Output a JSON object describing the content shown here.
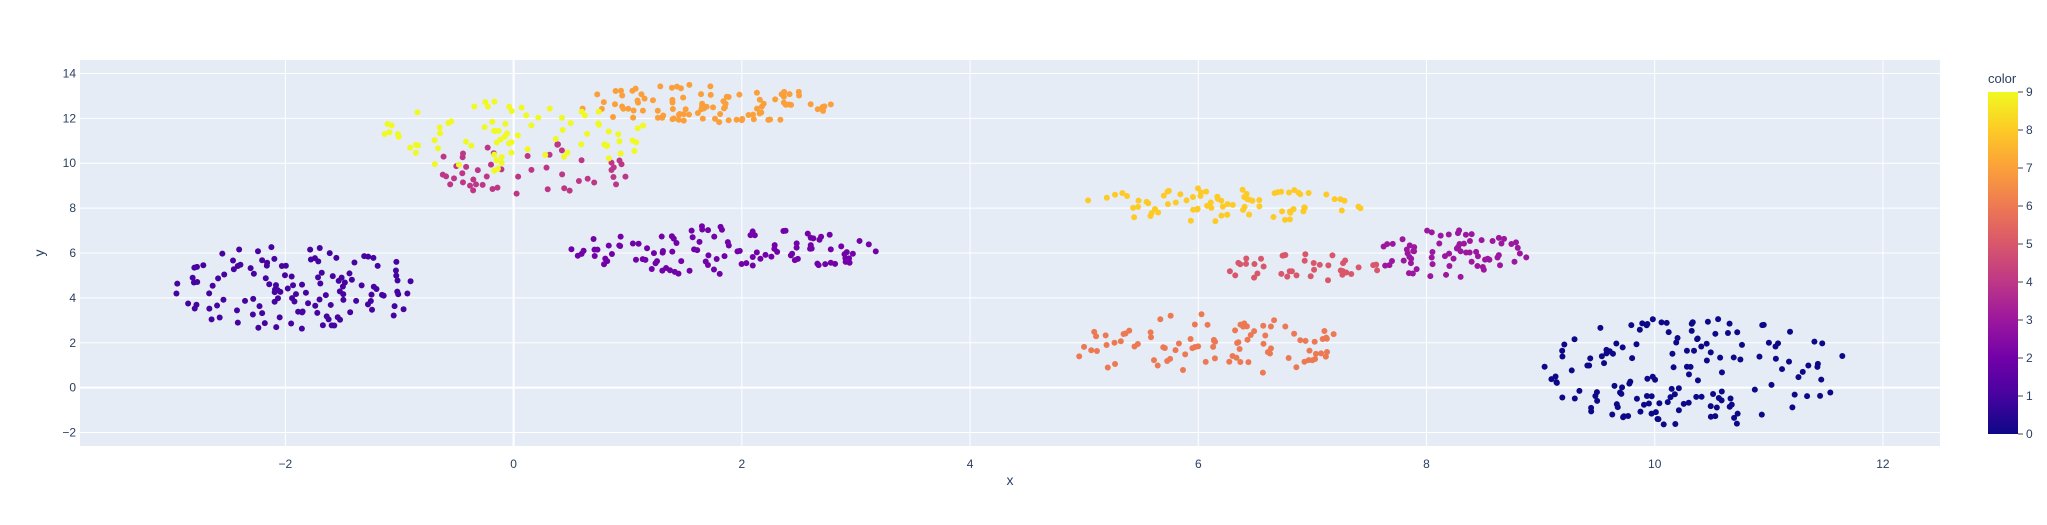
{
  "chart_data": {
    "type": "scatter",
    "title": "",
    "xlabel": "x",
    "ylabel": "y",
    "xlim": [
      -3.8,
      12.5
    ],
    "ylim": [
      -2.6,
      14.6
    ],
    "x_ticks": [
      -2,
      0,
      2,
      4,
      6,
      8,
      10,
      12
    ],
    "y_ticks": [
      -2,
      0,
      2,
      4,
      6,
      8,
      10,
      12,
      14
    ],
    "x_tick_labels": [
      "−2",
      "0",
      "2",
      "4",
      "6",
      "8",
      "10",
      "12"
    ],
    "y_tick_labels": [
      "−2",
      "0",
      "2",
      "4",
      "6",
      "8",
      "10",
      "12",
      "14"
    ],
    "grid": true,
    "colorscale": "plasma",
    "colorbar": {
      "title": "color",
      "range": [
        0,
        9
      ],
      "ticks": [
        0,
        1,
        2,
        3,
        4,
        5,
        6,
        7,
        8,
        9
      ],
      "tick_labels": [
        "0",
        "1",
        "2",
        "3",
        "4",
        "5",
        "6",
        "7",
        "8",
        "9"
      ]
    },
    "clusters": [
      {
        "label": 0,
        "n": 150,
        "x_range": [
          9.0,
          11.7
        ],
        "y_range": [
          -1.7,
          3.2
        ]
      },
      {
        "label": 1,
        "n": 130,
        "x_range": [
          -3.0,
          -0.8
        ],
        "y_range": [
          2.5,
          6.4
        ]
      },
      {
        "label": 2,
        "n": 110,
        "x_range": [
          0.5,
          3.2
        ],
        "y_range": [
          5.0,
          7.3
        ]
      },
      {
        "label": 3,
        "n": 70,
        "x_range": [
          7.5,
          8.9
        ],
        "y_range": [
          4.9,
          7.1
        ]
      },
      {
        "label": 4,
        "n": 50,
        "x_range": [
          -0.8,
          1.1
        ],
        "y_range": [
          8.4,
          10.9
        ]
      },
      {
        "label": 5,
        "n": 40,
        "x_range": [
          6.2,
          7.6
        ],
        "y_range": [
          4.7,
          6.0
        ]
      },
      {
        "label": 6,
        "n": 90,
        "x_range": [
          4.8,
          7.3
        ],
        "y_range": [
          0.5,
          3.3
        ]
      },
      {
        "label": 7,
        "n": 100,
        "x_range": [
          0.5,
          2.9
        ],
        "y_range": [
          11.8,
          13.5
        ]
      },
      {
        "label": 8,
        "n": 80,
        "x_range": [
          4.9,
          7.5
        ],
        "y_range": [
          7.4,
          8.9
        ]
      },
      {
        "label": 9,
        "n": 80,
        "x_range": [
          -1.2,
          1.2
        ],
        "y_range": [
          9.6,
          12.8
        ]
      }
    ]
  }
}
